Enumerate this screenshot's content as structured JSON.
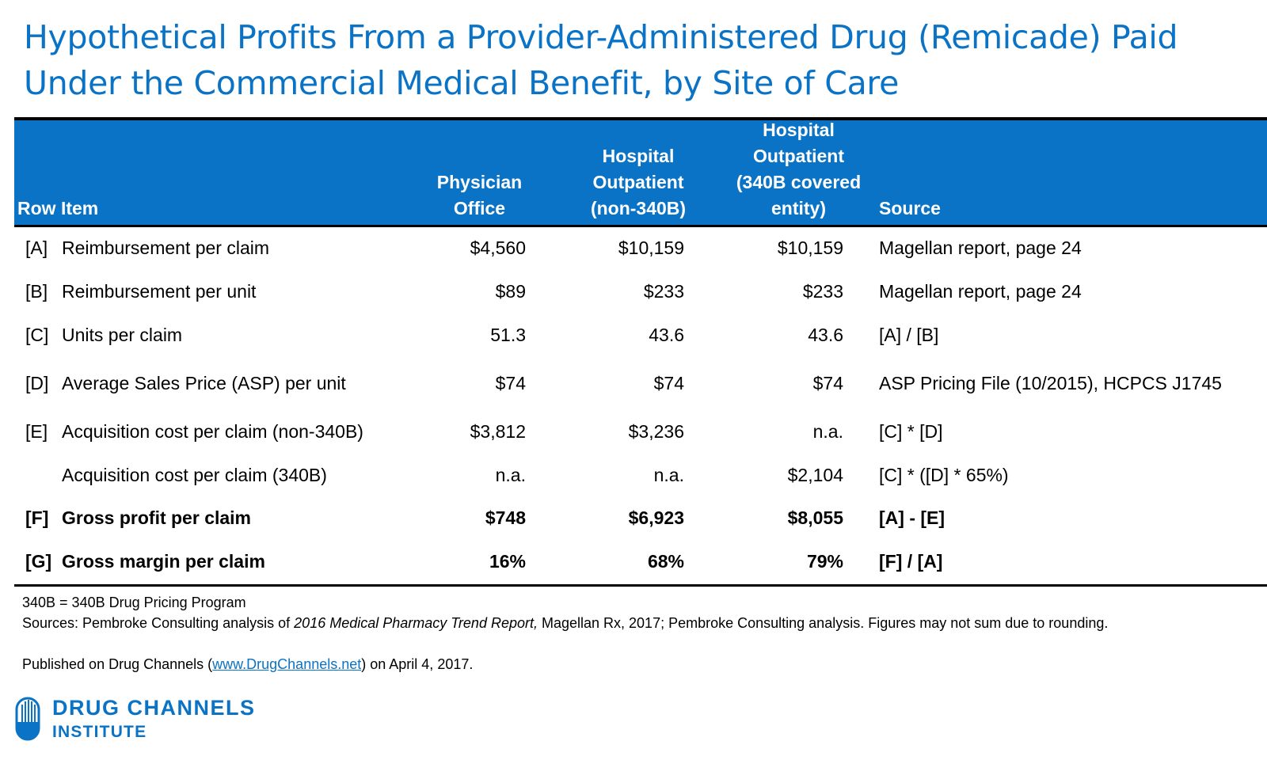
{
  "title": {
    "line1": "Hypothetical Profits From a Provider-Administered Drug (Remicade) Paid",
    "line2": "Under the Commercial Medical Benefit, by Site of Care"
  },
  "table": {
    "headers": {
      "row_item": "Row Item",
      "physician": [
        "Physician",
        "Office"
      ],
      "hosp_non340b": [
        "Hospital",
        "Outpatient",
        "(non-340B)"
      ],
      "hosp_340b": [
        "Hospital",
        "Outpatient",
        "(340B covered",
        "entity)"
      ],
      "source": "Source"
    },
    "rows": [
      {
        "id": "[A]",
        "item": "Reimbursement per claim",
        "physician": "$4,560",
        "hosp": "$10,159",
        "hosp340": "$10,159",
        "source": "Magellan report, page 24"
      },
      {
        "id": "[B]",
        "item": "Reimbursement per unit",
        "physician": "$89",
        "hosp": "$233",
        "hosp340": "$233",
        "source": "Magellan report, page 24"
      },
      {
        "id": "[C]",
        "item": "Units per claim",
        "physician": "51.3",
        "hosp": "43.6",
        "hosp340": "43.6",
        "source": "[A] / [B]"
      },
      {
        "id": "[D]",
        "item": "Average Sales Price (ASP) per unit",
        "physician": "$74",
        "hosp": "$74",
        "hosp340": "$74",
        "source": "ASP Pricing File (10/2015), HCPCS J1745"
      },
      {
        "id": "[E]",
        "item": "Acquisition cost per claim (non-340B)",
        "physician": "$3,812",
        "hosp": "$3,236",
        "hosp340": "n.a.",
        "source": "[C] * [D]"
      },
      {
        "id": "",
        "item": "Acquisition cost per claim (340B)",
        "physician": "n.a.",
        "hosp": "n.a.",
        "hosp340": "$2,104",
        "source": "[C] * ([D] * 65%)"
      },
      {
        "id": "[F]",
        "item": "Gross profit per claim",
        "physician": "$748",
        "hosp": "$6,923",
        "hosp340": "$8,055",
        "source": "[A] - [E]"
      },
      {
        "id": "[G]",
        "item": "Gross margin per claim",
        "physician": "16%",
        "hosp": "68%",
        "hosp340": "79%",
        "source": "[F] / [A]"
      }
    ]
  },
  "notes": {
    "line1": "340B = 340B Drug Pricing Program",
    "line2_pre": "Sources: Pembroke Consulting analysis of ",
    "line2_italic": "2016 Medical Pharmacy Trend Report,",
    "line2_post": " Magellan Rx, 2017; Pembroke Consulting analysis. Figures may not sum due to rounding.",
    "line3_pre": "Published on Drug Channels (",
    "line3_link": "www.DrugChannels.net",
    "line3_post": ") on April 4, 2017."
  },
  "logo": {
    "line1": "DRUG CHANNELS",
    "line2": "INSTITUTE"
  },
  "colors": {
    "brand_blue": "#0a73c5"
  }
}
